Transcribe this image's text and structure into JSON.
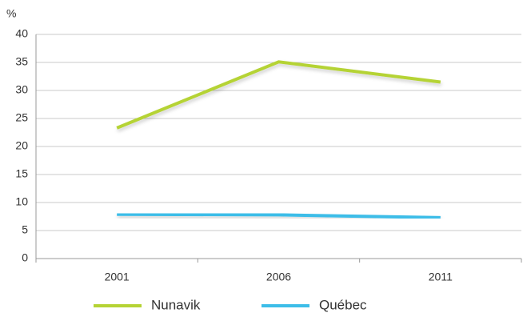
{
  "chart_data": {
    "type": "line",
    "y_label": "%",
    "categories": [
      "2001",
      "2006",
      "2011"
    ],
    "series": [
      {
        "name": "Nunavik",
        "color": "#b5d334",
        "values": [
          23.3,
          35.1,
          31.5
        ]
      },
      {
        "name": "Québec",
        "color": "#3dbde8",
        "values": [
          7.9,
          7.8,
          7.3
        ]
      }
    ],
    "ylim": [
      0,
      40
    ],
    "yticks": [
      0,
      5,
      10,
      15,
      20,
      25,
      30,
      35,
      40
    ],
    "grid": true,
    "legend": "bottom"
  }
}
